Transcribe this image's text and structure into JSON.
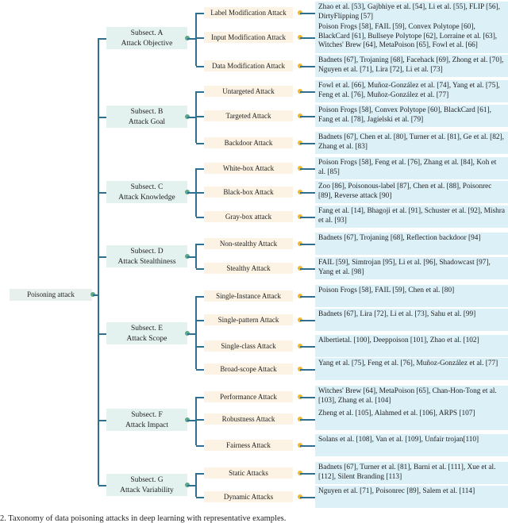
{
  "root": "Poisoning attack",
  "colors": {
    "subset_bg": "#e4f2ef",
    "leaf_bg": "#fcf3e4",
    "ref_bg": "#dcf0f8",
    "line": "#2f6f8f",
    "subset_dot": "#5aaa88",
    "leaf_dot": "#f2b630"
  },
  "subsets": [
    {
      "title": "Subsect. A",
      "name": "Attack Objective",
      "leaves": [
        {
          "label": "Label Modification Attack",
          "refs": "Zhao et al. [53],  Gajbhiye et al. [54],  Li et al. [55], FLIP [56],  DirtyFlipping [57]"
        },
        {
          "label": "Input Modification Attack",
          "refs": "Poison Frogs [58],  FAIL [59],  Convex Polytope  [60], BlackCard [61],  Bullseye Polytope [62],  Lorraine et al. [63], Witches' Brew [64], MetaPoison [65], Fowl et al. [66]"
        },
        {
          "label": "Data Modification Attack",
          "refs": "Badnets [67],  Trojaning  [68],  Facehack [69], Zhong et al. [70],  Nguyen et al. [71], Lira [72], Li et al. [73]"
        }
      ]
    },
    {
      "title": "Subsect. B",
      "name": "Attack Goal",
      "leaves": [
        {
          "label": "Untargeted Attack",
          "refs": "Fowl et al. [66], Muñoz-González et al. [74], Yang et al. [75], Feng et al. [76], Muñoz-González et al. [77]"
        },
        {
          "label": "Targeted Attack",
          "refs": "Poison Frogs [58],  Convex Polytope  [60], BlackCard [61], Fang et al. [78],   Jagielski et al. [79]"
        },
        {
          "label": "Backdoor Attack",
          "refs": "Badnets [67],  Chen et al. [80],  Turner et al. [81], Ge et al. [82], Zhang et al. [83]"
        }
      ]
    },
    {
      "title": "Subsect. C",
      "name": "Attack Knowledge",
      "leaves": [
        {
          "label": "White-box Attack",
          "refs": "Poison Frogs [58], Feng et al. [76],  Zhang et al. [84], Koh et al. [85]"
        },
        {
          "label": "Black-box Attack",
          "refs": "Zoo [86], Poisonous-label [87],  Chen et al. [88], Poisonrec [89], Reverse attack [90]"
        },
        {
          "label": "Gray-box attack",
          "refs": "Fang et al. [14], Bhagoji et al. [91], Schuster et al. [92], Mishra et al. [93]"
        }
      ]
    },
    {
      "title": "Subsect. D",
      "name": "Attack Stealthiness",
      "leaves": [
        {
          "label": "Non-stealthy Attack",
          "refs": "Badnets [67],  Trojaning  [68], Reflection backdoor [94]"
        },
        {
          "label": "Stealthy Attack",
          "refs": "FAIL [59],  Simtrojan [95], Li et al. [96], Shadowcast [97], Yang et al. [98]"
        }
      ]
    },
    {
      "title": "Subsect. E",
      "name": "Attack Scope",
      "leaves": [
        {
          "label": "Single-Instance Attack",
          "refs": "Poison Frogs [58],  FAIL [59], Chen et al. [80]"
        },
        {
          "label": "Single-pattern Attack",
          "refs": "Badnets [67], Lira [72], Li et al. [73], Sahu et al. [99]"
        },
        {
          "label": "Single-class Attack",
          "refs": "Albertietal. [100],  Deeppoison [101], Zhao et al. [102]"
        },
        {
          "label": "Broad-scope Attack",
          "refs": "Yang et al. [75], Feng et al. [76], Muñoz-González et al. [77]"
        }
      ]
    },
    {
      "title": "Subsect. F",
      "name": "Attack Impact",
      "leaves": [
        {
          "label": "Performance Attack",
          "refs": "Witches' Brew [64], MetaPoison [65], Chan-Hon-Tong et al. [103], Zhang et al. [104]"
        },
        {
          "label": "Robustness Attack",
          "refs": "Zheng et al. [105], Alahmed et al. [106], ARPS [107]"
        },
        {
          "label": "Fairness Attack",
          "refs": "Solans et al. [108], Van et al. [109], Unfair trojan[110]"
        }
      ]
    },
    {
      "title": "Subsect. G",
      "name": "Attack Variability",
      "leaves": [
        {
          "label": "Static Attacks",
          "refs": "Badnets [67],  Turner et al. [81],  Barni et al.  [111], Xue et al.  [112], Silent Branding  [113]"
        },
        {
          "label": "Dynamic Attacks",
          "refs": "Nguyen et al. [71], Poisonrec [89], Salem et al. [114]"
        }
      ]
    }
  ],
  "caption": "2.  Taxonomy of data poisoning attacks in deep learning with representative examples."
}
